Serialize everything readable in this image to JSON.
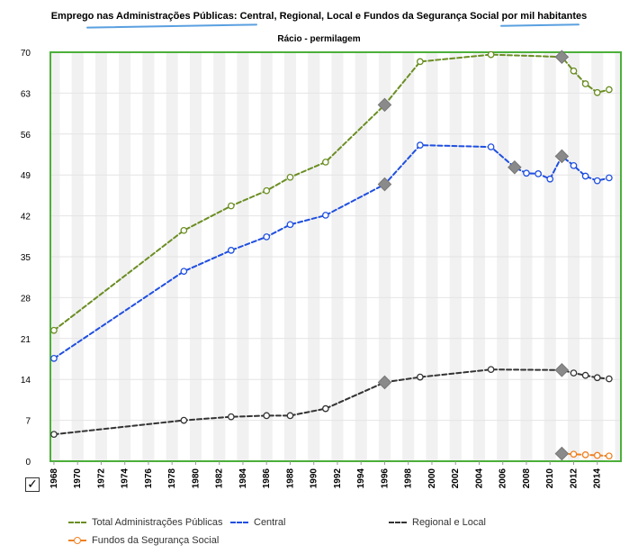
{
  "chart_data": {
    "type": "line",
    "title": "Emprego nas Administrações Públicas: Central, Regional, Local e Fundos da Segurança Social por mil habitantes",
    "subtitle": "Rácio - permilagem",
    "ylim": [
      0,
      70
    ],
    "yticks": [
      "0",
      "7",
      "14",
      "21",
      "28",
      "35",
      "42",
      "49",
      "56",
      "63",
      "70"
    ],
    "xlim": [
      1967.7,
      2016
    ],
    "xticks": [
      "1968",
      "1970",
      "1972",
      "1974",
      "1976",
      "1978",
      "1980",
      "1982",
      "1984",
      "1986",
      "1988",
      "1990",
      "1992",
      "1994",
      "1996",
      "1998",
      "2000",
      "2002",
      "2004",
      "2006",
      "2008",
      "2010",
      "2012",
      "2014"
    ],
    "grid": true,
    "legend_position": "bottom",
    "series": [
      {
        "name": "Total Administrações Públicas",
        "color": "#6b8e23",
        "x": [
          1968,
          1979,
          1983,
          1986,
          1988,
          1991,
          1996,
          1999,
          2005,
          2011,
          2012,
          2013,
          2014,
          2015
        ],
        "y": [
          22.4,
          39.5,
          43.7,
          46.3,
          48.6,
          51.2,
          61.0,
          68.4,
          69.6,
          69.2,
          66.8,
          64.6,
          63.1,
          63.6
        ],
        "breaks": [
          1996,
          2011
        ]
      },
      {
        "name": "Central",
        "color": "#1f4fe0",
        "x": [
          1968,
          1979,
          1983,
          1986,
          1988,
          1991,
          1996,
          1999,
          2005,
          2007,
          2008,
          2009,
          2010,
          2011,
          2012,
          2013,
          2014,
          2015
        ],
        "y": [
          17.6,
          32.5,
          36.1,
          38.4,
          40.5,
          42.1,
          47.4,
          54.1,
          53.8,
          50.3,
          49.3,
          49.2,
          48.3,
          52.2,
          50.6,
          48.8,
          48.0,
          48.5
        ],
        "breaks": [
          1996,
          2007,
          2011
        ]
      },
      {
        "name": "Regional e Local",
        "color": "#333333",
        "x": [
          1968,
          1979,
          1983,
          1986,
          1988,
          1991,
          1996,
          1999,
          2005,
          2011,
          2012,
          2013,
          2014,
          2015
        ],
        "y": [
          4.6,
          7.0,
          7.6,
          7.8,
          7.8,
          9.0,
          13.5,
          14.4,
          15.7,
          15.6,
          15.1,
          14.7,
          14.3,
          14.1
        ],
        "breaks": [
          1996,
          2011
        ]
      },
      {
        "name": "Fundos da Segurança Social",
        "color": "#f08020",
        "x": [
          2011,
          2012,
          2013,
          2014,
          2015
        ],
        "y": [
          1.3,
          1.2,
          1.1,
          1.0,
          0.9
        ],
        "breaks": [
          2011
        ]
      }
    ]
  }
}
